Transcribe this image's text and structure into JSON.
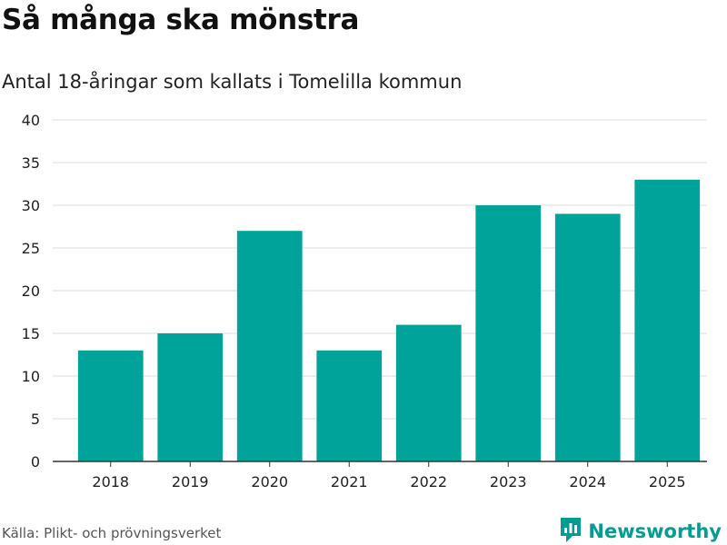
{
  "header": {
    "title": "Så många ska mönstra",
    "subtitle": "Antal 18-åringar som kallats i Tomelilla kommun"
  },
  "footer": {
    "source": "Källa: Plikt- och prövningsverket",
    "brand": "Newsworthy",
    "brand_icon": "newsworthy-logo-icon"
  },
  "colors": {
    "bar": "#00a39a",
    "grid": "#dddddd",
    "axis": "#333333",
    "brand": "#009c93"
  },
  "chart_data": {
    "type": "bar",
    "title": "Så många ska mönstra",
    "subtitle": "Antal 18-åringar som kallats i Tomelilla kommun",
    "categories": [
      "2018",
      "2019",
      "2020",
      "2021",
      "2022",
      "2023",
      "2024",
      "2025"
    ],
    "values": [
      13,
      15,
      27,
      13,
      16,
      30,
      29,
      33
    ],
    "xlabel": "",
    "ylabel": "",
    "ylim": [
      0,
      40
    ],
    "yticks": [
      0,
      5,
      10,
      15,
      20,
      25,
      30,
      35,
      40
    ],
    "grid": true,
    "legend": "none"
  }
}
